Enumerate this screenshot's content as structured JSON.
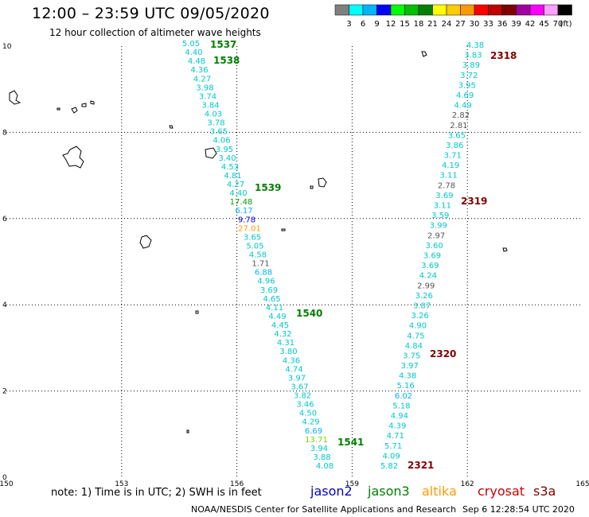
{
  "header": {
    "title": "12:00 – 23:59 UTC 09/05/2020",
    "subtitle": "12 hour collection of altimeter wave heights"
  },
  "legend": {
    "unit": "(ft)",
    "bins": [
      {
        "label": "3",
        "color": "#7f7f7f"
      },
      {
        "label": "6",
        "color": "#00ffff"
      },
      {
        "label": "9",
        "color": "#00b4ff"
      },
      {
        "label": "12",
        "color": "#0000ff"
      },
      {
        "label": "15",
        "color": "#00ff00"
      },
      {
        "label": "18",
        "color": "#00c000"
      },
      {
        "label": "21",
        "color": "#008000"
      },
      {
        "label": "24",
        "color": "#ffff00"
      },
      {
        "label": "27",
        "color": "#ffcc00"
      },
      {
        "label": "30",
        "color": "#ff9900"
      },
      {
        "label": "33",
        "color": "#ff0000"
      },
      {
        "label": "36",
        "color": "#c00000"
      },
      {
        "label": "39",
        "color": "#800000"
      },
      {
        "label": "42",
        "color": "#a000a0"
      },
      {
        "label": "45",
        "color": "#ff00ff"
      },
      {
        "label": "70",
        "color": "#ffa0ff"
      },
      {
        "label": "",
        "color": "#000000"
      }
    ]
  },
  "axes": {
    "lon_ticks": [
      "150",
      "153",
      "156",
      "159",
      "162",
      "165"
    ],
    "lat_ticks": [
      "0",
      "2",
      "4",
      "6",
      "8",
      "10"
    ]
  },
  "tracks": [
    {
      "name": "jason3-track-west",
      "passes": [
        {
          "label": "1537",
          "color": "#008000"
        },
        {
          "label": "1538",
          "color": "#008000"
        },
        {
          "label": "1539",
          "color": "#008000"
        },
        {
          "label": "1540",
          "color": "#008000"
        },
        {
          "label": "1541",
          "color": "#008000"
        }
      ],
      "readings": [
        {
          "v": "5.05",
          "c": "#00c8c8"
        },
        {
          "v": "4.40",
          "c": "#00c8c8"
        },
        {
          "v": "4.48",
          "c": "#00c8c8"
        },
        {
          "v": "4.36",
          "c": "#00c8c8"
        },
        {
          "v": "4.27",
          "c": "#00c8c8"
        },
        {
          "v": "3.98",
          "c": "#00c8c8"
        },
        {
          "v": "3.74",
          "c": "#00c8c8"
        },
        {
          "v": "3.84",
          "c": "#00c8c8"
        },
        {
          "v": "4.03",
          "c": "#00c8c8"
        },
        {
          "v": "3.78",
          "c": "#00c8c8"
        },
        {
          "v": "3.65",
          "c": "#00c8c8"
        },
        {
          "v": "4.06",
          "c": "#00c8c8"
        },
        {
          "v": "3.95",
          "c": "#00c8c8"
        },
        {
          "v": "3.40",
          "c": "#00c8c8"
        },
        {
          "v": "4.53",
          "c": "#00c8c8"
        },
        {
          "v": "4.81",
          "c": "#00c8c8"
        },
        {
          "v": "4.27",
          "c": "#00c8c8"
        },
        {
          "v": "4.40",
          "c": "#00c8c8"
        },
        {
          "v": "17.48",
          "c": "#00a000"
        },
        {
          "v": "6.17",
          "c": "#00b4ff"
        },
        {
          "v": "9.78",
          "c": "#0000ff"
        },
        {
          "v": "27.01",
          "c": "#ff9900"
        },
        {
          "v": "3.65",
          "c": "#00c8c8"
        },
        {
          "v": "5.05",
          "c": "#00c8c8"
        },
        {
          "v": "4.58",
          "c": "#00c8c8"
        },
        {
          "v": "1.71",
          "c": "#555555"
        },
        {
          "v": "6.88",
          "c": "#00b4ff"
        },
        {
          "v": "4.96",
          "c": "#00c8c8"
        },
        {
          "v": "3.69",
          "c": "#00c8c8"
        },
        {
          "v": "4.65",
          "c": "#00c8c8"
        },
        {
          "v": "4.11",
          "c": "#00c8c8"
        },
        {
          "v": "4.49",
          "c": "#00c8c8"
        },
        {
          "v": "4.45",
          "c": "#00c8c8"
        },
        {
          "v": "4.32",
          "c": "#00c8c8"
        },
        {
          "v": "4.31",
          "c": "#00c8c8"
        },
        {
          "v": "3.80",
          "c": "#00c8c8"
        },
        {
          "v": "4.36",
          "c": "#00c8c8"
        },
        {
          "v": "4.74",
          "c": "#00c8c8"
        },
        {
          "v": "3.97",
          "c": "#00c8c8"
        },
        {
          "v": "3.67",
          "c": "#00c8c8"
        },
        {
          "v": "3.82",
          "c": "#00c8c8"
        },
        {
          "v": "3.46",
          "c": "#00c8c8"
        },
        {
          "v": "4.50",
          "c": "#00c8c8"
        },
        {
          "v": "4.29",
          "c": "#00c8c8"
        },
        {
          "v": "6.69",
          "c": "#00b4ff"
        },
        {
          "v": "13.71",
          "c": "#7fd000"
        },
        {
          "v": "3.94",
          "c": "#00c8c8"
        },
        {
          "v": "3.88",
          "c": "#00c8c8"
        },
        {
          "v": "4.08",
          "c": "#00c8c8"
        }
      ]
    },
    {
      "name": "cryosat-track-east",
      "passes": [
        {
          "label": "2318",
          "color": "#800000"
        },
        {
          "label": "2319",
          "color": "#800000"
        },
        {
          "label": "2320",
          "color": "#800000"
        },
        {
          "label": "2321",
          "color": "#800000"
        }
      ],
      "readings": [
        {
          "v": "4.38",
          "c": "#00c8c8"
        },
        {
          "v": "3.83",
          "c": "#00c8c8"
        },
        {
          "v": "3.89",
          "c": "#00c8c8"
        },
        {
          "v": "3.72",
          "c": "#00c8c8"
        },
        {
          "v": "3.95",
          "c": "#00c8c8"
        },
        {
          "v": "4.69",
          "c": "#00c8c8"
        },
        {
          "v": "4.49",
          "c": "#00c8c8"
        },
        {
          "v": "2.82",
          "c": "#555555"
        },
        {
          "v": "2.81",
          "c": "#555555"
        },
        {
          "v": "3.65",
          "c": "#00c8c8"
        },
        {
          "v": "3.86",
          "c": "#00c8c8"
        },
        {
          "v": "3.71",
          "c": "#00c8c8"
        },
        {
          "v": "4.19",
          "c": "#00c8c8"
        },
        {
          "v": "3.11",
          "c": "#00c8c8"
        },
        {
          "v": "2.78",
          "c": "#555555"
        },
        {
          "v": "3.69",
          "c": "#00c8c8"
        },
        {
          "v": "3.11",
          "c": "#00c8c8"
        },
        {
          "v": "3.59",
          "c": "#00c8c8"
        },
        {
          "v": "3.99",
          "c": "#00c8c8"
        },
        {
          "v": "2.97",
          "c": "#555555"
        },
        {
          "v": "3.60",
          "c": "#00c8c8"
        },
        {
          "v": "3.69",
          "c": "#00c8c8"
        },
        {
          "v": "3.69",
          "c": "#00c8c8"
        },
        {
          "v": "4.24",
          "c": "#00c8c8"
        },
        {
          "v": "2.99",
          "c": "#555555"
        },
        {
          "v": "3.26",
          "c": "#00c8c8"
        },
        {
          "v": "3.87",
          "c": "#00c8c8"
        },
        {
          "v": "3.26",
          "c": "#00c8c8"
        },
        {
          "v": "4.90",
          "c": "#00c8c8"
        },
        {
          "v": "4.75",
          "c": "#00c8c8"
        },
        {
          "v": "4.84",
          "c": "#00c8c8"
        },
        {
          "v": "3.75",
          "c": "#00c8c8"
        },
        {
          "v": "3.97",
          "c": "#00c8c8"
        },
        {
          "v": "4.38",
          "c": "#00c8c8"
        },
        {
          "v": "5.16",
          "c": "#00c8c8"
        },
        {
          "v": "6.02",
          "c": "#00b4ff"
        },
        {
          "v": "5.18",
          "c": "#00c8c8"
        },
        {
          "v": "4.94",
          "c": "#00c8c8"
        },
        {
          "v": "4.39",
          "c": "#00c8c8"
        },
        {
          "v": "4.71",
          "c": "#00c8c8"
        },
        {
          "v": "5.71",
          "c": "#00c8c8"
        },
        {
          "v": "4.09",
          "c": "#00c8c8"
        },
        {
          "v": "5.82",
          "c": "#00c8c8"
        }
      ]
    }
  ],
  "footer": {
    "note": "note:  1) Time is in UTC; 2) SWH is in feet",
    "satellites": [
      {
        "name": "jason2",
        "color": "#0000cc"
      },
      {
        "name": "jason3",
        "color": "#008000"
      },
      {
        "name": "altika",
        "color": "#ff9900"
      },
      {
        "name": "cryosat",
        "color": "#cc0000"
      },
      {
        "name": "s3a",
        "color": "#800000"
      }
    ],
    "center": "NOAA/NESDIS Center for Satellite Applications and Research",
    "timestamp": "Sep  6 12:28:54 UTC 2020"
  }
}
